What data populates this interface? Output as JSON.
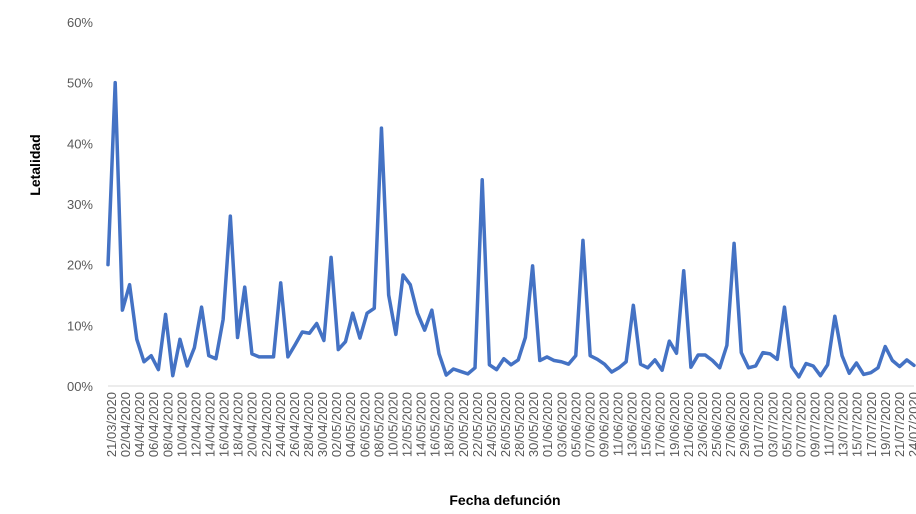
{
  "chart_data": {
    "type": "line",
    "title": "",
    "xlabel": "Fecha defunción",
    "ylabel": "Letalidad",
    "ylim": [
      0,
      0.6
    ],
    "y_ticks": [
      0,
      0.1,
      0.2,
      0.3,
      0.4,
      0.5,
      0.6
    ],
    "y_tick_labels": [
      "00%",
      "10%",
      "20%",
      "30%",
      "40%",
      "50%",
      "60%"
    ],
    "grid": false,
    "legend": "none",
    "series_color": "#4472c4",
    "x_tick_labels": [
      "21/03/2020",
      "02/04/2020",
      "04/04/2020",
      "06/04/2020",
      "08/04/2020",
      "10/04/2020",
      "12/04/2020",
      "14/04/2020",
      "16/04/2020",
      "18/04/2020",
      "20/04/2020",
      "22/04/2020",
      "24/04/2020",
      "26/04/2020",
      "28/04/2020",
      "30/04/2020",
      "02/05/2020",
      "04/05/2020",
      "06/05/2020",
      "08/05/2020",
      "10/05/2020",
      "12/05/2020",
      "14/05/2020",
      "16/05/2020",
      "18/05/2020",
      "20/05/2020",
      "22/05/2020",
      "24/05/2020",
      "26/05/2020",
      "28/05/2020",
      "30/05/2020",
      "01/06/2020",
      "03/06/2020",
      "05/06/2020",
      "07/06/2020",
      "09/06/2020",
      "11/06/2020",
      "13/06/2020",
      "15/06/2020",
      "17/06/2020",
      "19/06/2020",
      "21/06/2020",
      "23/06/2020",
      "25/06/2020",
      "27/06/2020",
      "29/06/2020",
      "01/07/2020",
      "03/07/2020",
      "05/07/2020",
      "07/07/2020",
      "09/07/2020",
      "11/07/2020",
      "13/07/2020",
      "15/07/2020",
      "17/07/2020",
      "19/07/2020",
      "21/07/2020",
      "24/07/2020"
    ],
    "series": [
      {
        "values": [
          0.2,
          0.5,
          0.125,
          0.167,
          0.077,
          0.04,
          0.05,
          0.027,
          0.118,
          0.017,
          0.077,
          0.033,
          0.063,
          0.13,
          0.05,
          0.045,
          0.11,
          0.28,
          0.08,
          0.163,
          0.053,
          0.048,
          0.048,
          0.048,
          0.17,
          0.048,
          0.068,
          0.089,
          0.087,
          0.103,
          0.075,
          0.212,
          0.06,
          0.073,
          0.12,
          0.079,
          0.12,
          0.128,
          0.425,
          0.15,
          0.085,
          0.183,
          0.167,
          0.12,
          0.092,
          0.125,
          0.053,
          0.018,
          0.028,
          0.024,
          0.02,
          0.03,
          0.34,
          0.035,
          0.027,
          0.045,
          0.035,
          0.043,
          0.08,
          0.198,
          0.042,
          0.048,
          0.042,
          0.04,
          0.036,
          0.05,
          0.24,
          0.05,
          0.044,
          0.036,
          0.023,
          0.03,
          0.04,
          0.133,
          0.036,
          0.03,
          0.043,
          0.026,
          0.074,
          0.054,
          0.19,
          0.031,
          0.051,
          0.051,
          0.042,
          0.03,
          0.067,
          0.235,
          0.055,
          0.03,
          0.033,
          0.055,
          0.053,
          0.044,
          0.13,
          0.032,
          0.015,
          0.037,
          0.033,
          0.017,
          0.035,
          0.115,
          0.05,
          0.021,
          0.038,
          0.019,
          0.022,
          0.03,
          0.065,
          0.042,
          0.032,
          0.043,
          0.034
        ]
      }
    ]
  }
}
